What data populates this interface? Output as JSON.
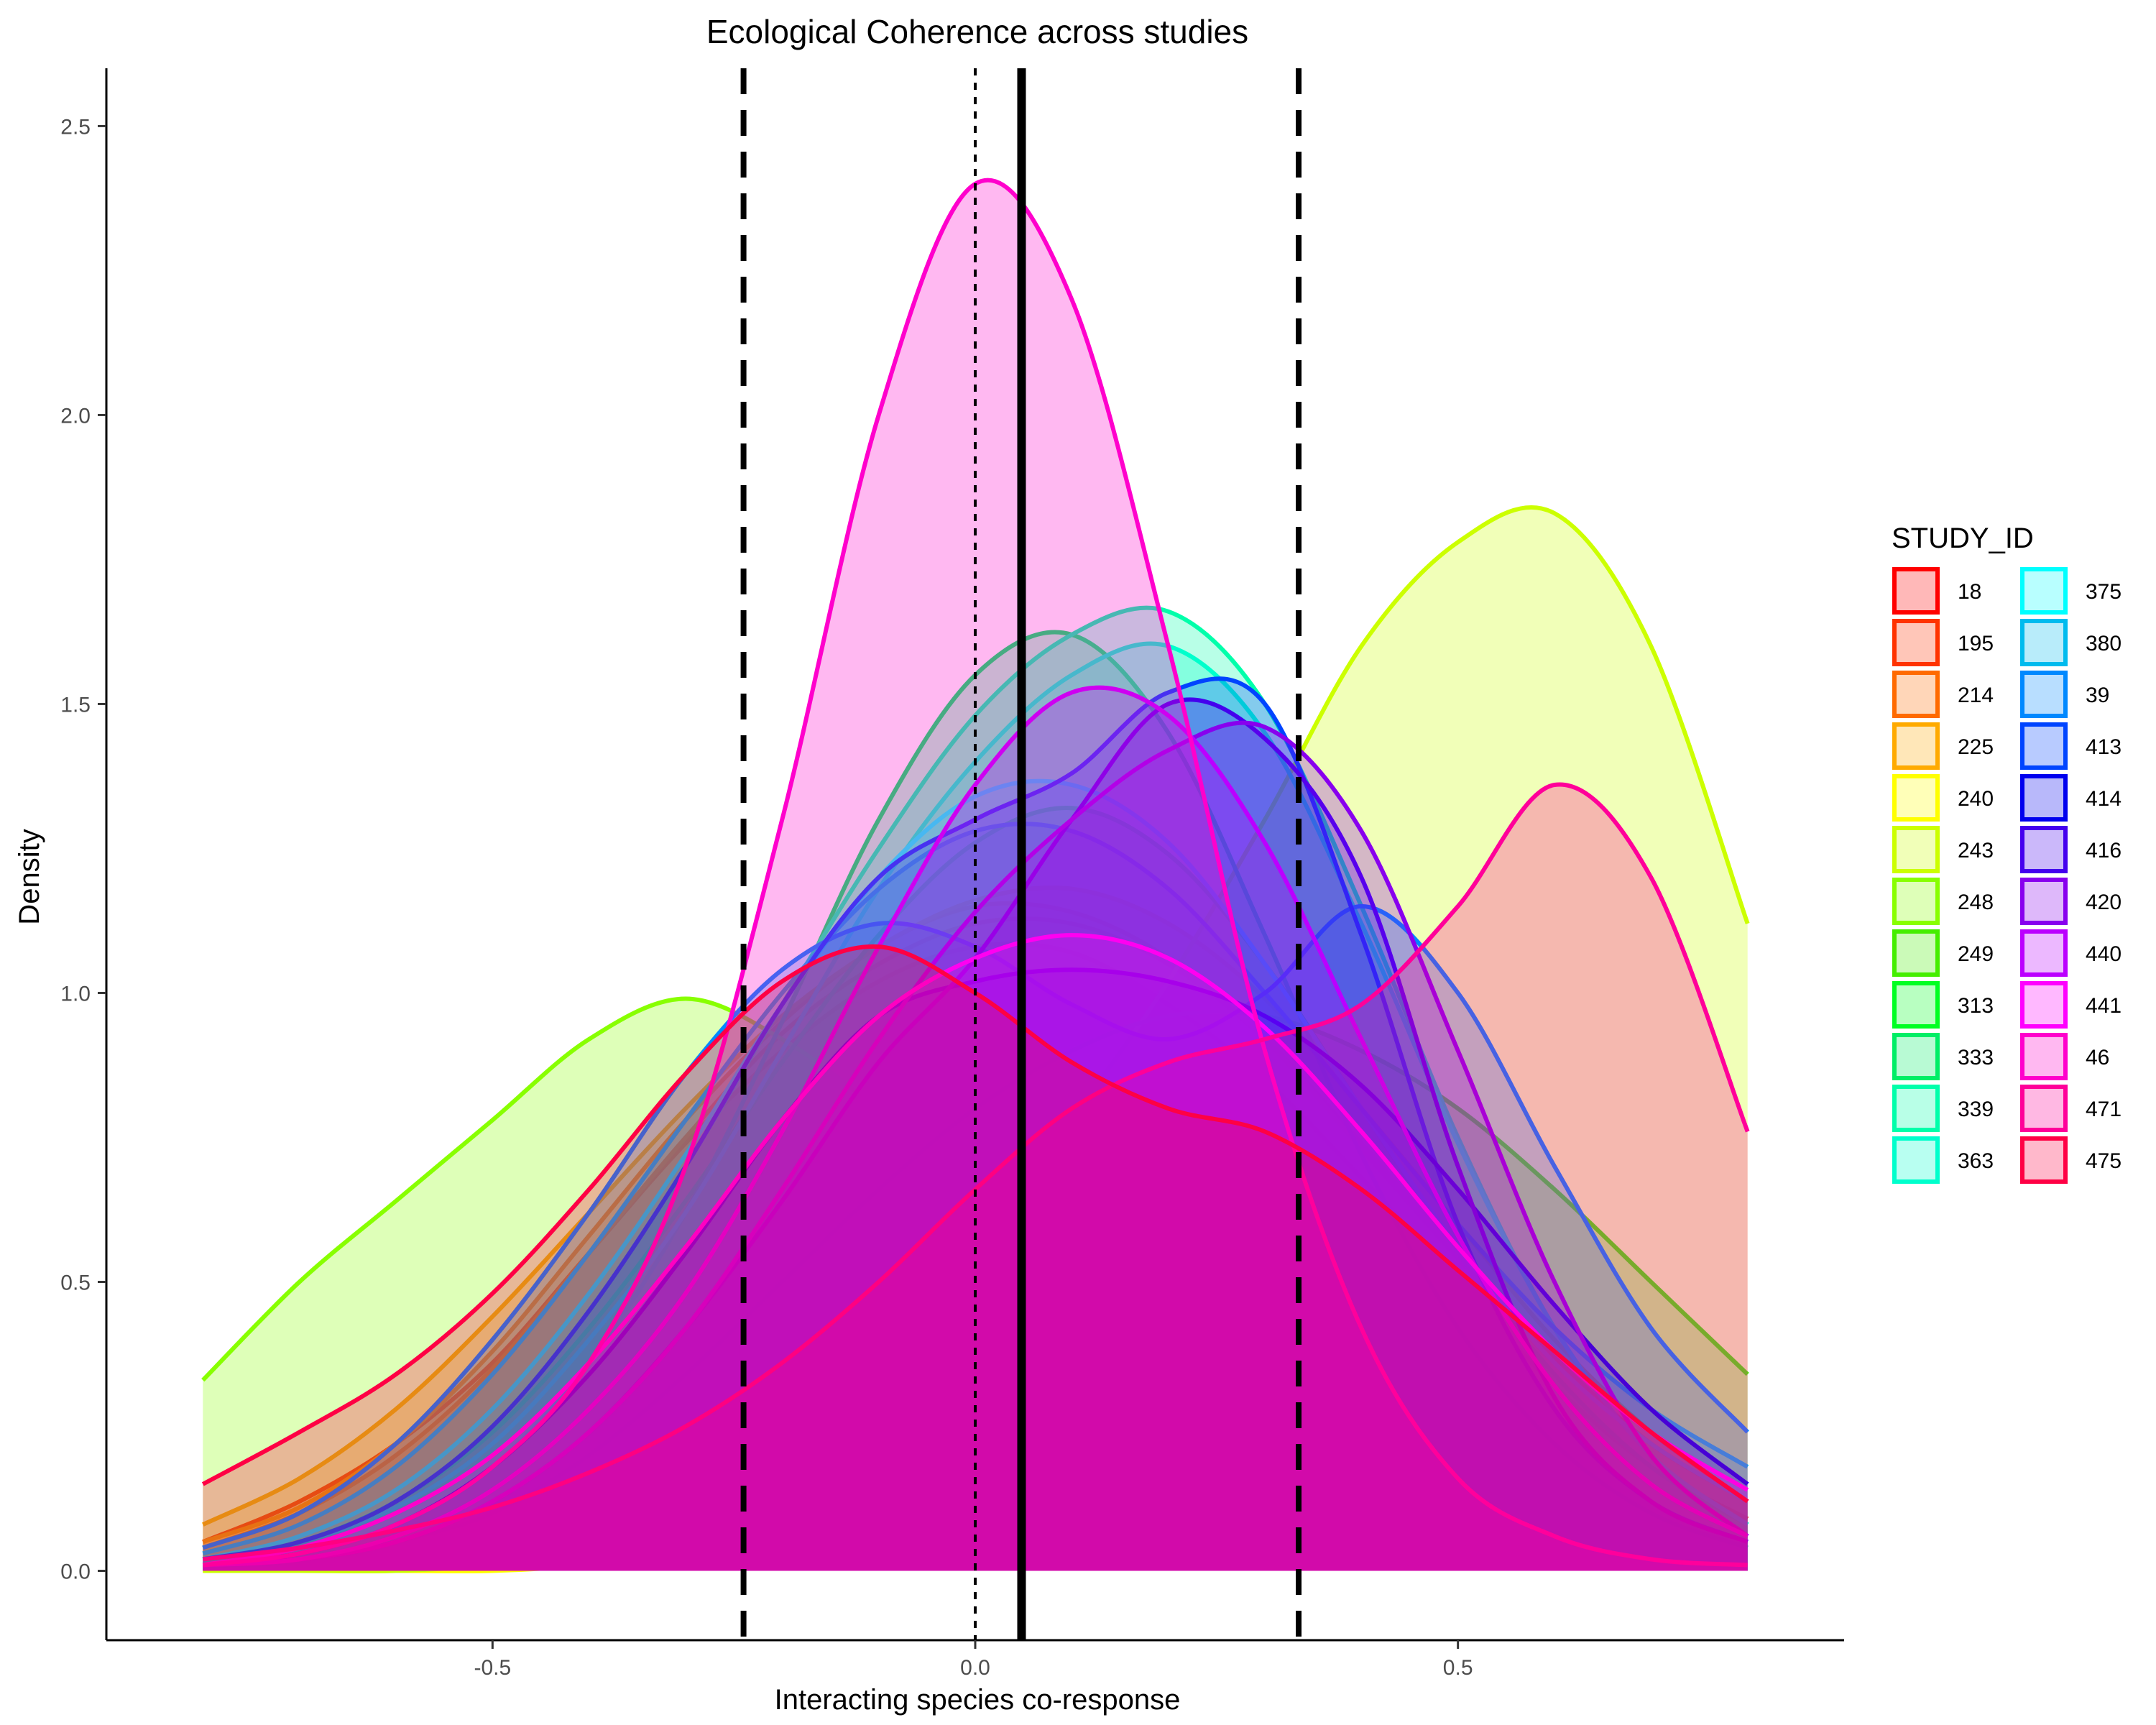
{
  "chart_data": {
    "type": "area",
    "title": "Ecological Coherence across studies",
    "xlabel": "Interacting species co-response",
    "ylabel": "Density",
    "xlim": [
      -0.9,
      0.9
    ],
    "ylim": [
      -0.12,
      2.6
    ],
    "xticks": [
      -0.5,
      0.0,
      0.5
    ],
    "xtick_labels": [
      "-0.5",
      "0.0",
      "0.5"
    ],
    "yticks": [
      0.0,
      0.5,
      1.0,
      1.5,
      2.0,
      2.5
    ],
    "ytick_labels": [
      "0.0",
      "0.5",
      "1.0",
      "1.5",
      "2.0",
      "2.5"
    ],
    "grid": false,
    "legend": {
      "title": "STUDY_ID",
      "placement": "right",
      "columns": 2
    },
    "reference_lines": [
      {
        "x": 0.0,
        "style": "dotted"
      },
      {
        "x": 0.048,
        "style": "solid-thick"
      },
      {
        "x": -0.24,
        "style": "dashed"
      },
      {
        "x": 0.335,
        "style": "dashed"
      }
    ],
    "x": [
      -0.8,
      -0.7,
      -0.6,
      -0.5,
      -0.4,
      -0.3,
      -0.2,
      -0.1,
      0.0,
      0.1,
      0.2,
      0.3,
      0.4,
      0.5,
      0.6,
      0.7,
      0.8
    ],
    "series": [
      {
        "name": "18",
        "color": "#ff0000",
        "values": [
          0.05,
          0.12,
          0.22,
          0.36,
          0.55,
          0.74,
          0.9,
          1.02,
          1.08,
          1.07,
          0.98,
          0.85,
          0.68,
          0.5,
          0.32,
          0.18,
          0.09
        ]
      },
      {
        "name": "195",
        "color": "#ff3300",
        "values": [
          0.04,
          0.1,
          0.2,
          0.35,
          0.55,
          0.75,
          0.93,
          1.05,
          1.12,
          1.12,
          1.05,
          0.92,
          0.74,
          0.55,
          0.37,
          0.22,
          0.12
        ]
      },
      {
        "name": "214",
        "color": "#ff6a00",
        "values": [
          0.05,
          0.11,
          0.22,
          0.38,
          0.58,
          0.78,
          0.95,
          1.08,
          1.15,
          1.14,
          1.06,
          0.92,
          0.73,
          0.54,
          0.36,
          0.22,
          0.12
        ]
      },
      {
        "name": "225",
        "color": "#ffaa00",
        "values": [
          0.08,
          0.16,
          0.28,
          0.44,
          0.62,
          0.8,
          0.96,
          1.08,
          1.16,
          1.18,
          1.12,
          0.99,
          0.8,
          0.6,
          0.4,
          0.24,
          0.12
        ]
      },
      {
        "name": "240",
        "color": "#ffff00",
        "values": [
          0.0,
          0.0,
          0.0,
          0.0,
          0.01,
          0.03,
          0.08,
          0.2,
          0.4,
          0.6,
          0.72,
          0.74,
          0.66,
          0.52,
          0.34,
          0.18,
          0.08
        ]
      },
      {
        "name": "243",
        "color": "#ccff00",
        "values": [
          0.0,
          0.0,
          0.0,
          0.01,
          0.03,
          0.08,
          0.18,
          0.34,
          0.55,
          0.78,
          1.02,
          1.3,
          1.6,
          1.78,
          1.83,
          1.6,
          1.12
        ]
      },
      {
        "name": "248",
        "color": "#88ff00",
        "values": [
          0.33,
          0.5,
          0.64,
          0.78,
          0.92,
          0.99,
          0.92,
          0.8,
          0.68,
          0.56,
          0.45,
          0.35,
          0.27,
          0.2,
          0.14,
          0.1,
          0.06
        ]
      },
      {
        "name": "249",
        "color": "#44ee00",
        "values": [
          0.01,
          0.02,
          0.05,
          0.1,
          0.2,
          0.34,
          0.5,
          0.66,
          0.8,
          0.9,
          0.96,
          0.96,
          0.9,
          0.8,
          0.66,
          0.5,
          0.34
        ]
      },
      {
        "name": "313",
        "color": "#00ff22",
        "values": [
          0.02,
          0.05,
          0.12,
          0.24,
          0.42,
          0.64,
          0.88,
          1.1,
          1.26,
          1.32,
          1.24,
          1.05,
          0.8,
          0.55,
          0.34,
          0.18,
          0.08
        ]
      },
      {
        "name": "333",
        "color": "#00ee66",
        "values": [
          0.01,
          0.03,
          0.08,
          0.18,
          0.36,
          0.62,
          0.95,
          1.3,
          1.55,
          1.62,
          1.45,
          1.1,
          0.72,
          0.42,
          0.22,
          0.1,
          0.04
        ]
      },
      {
        "name": "339",
        "color": "#00ffaa",
        "values": [
          0.02,
          0.05,
          0.12,
          0.25,
          0.45,
          0.7,
          0.98,
          1.25,
          1.48,
          1.62,
          1.66,
          1.5,
          1.15,
          0.75,
          0.42,
          0.2,
          0.08
        ]
      },
      {
        "name": "363",
        "color": "#00ffcc",
        "values": [
          0.02,
          0.05,
          0.11,
          0.22,
          0.4,
          0.62,
          0.9,
          1.18,
          1.4,
          1.55,
          1.6,
          1.45,
          1.12,
          0.74,
          0.42,
          0.2,
          0.08
        ]
      },
      {
        "name": "375",
        "color": "#00ffff",
        "values": [
          0.02,
          0.06,
          0.14,
          0.28,
          0.48,
          0.72,
          0.98,
          1.2,
          1.34,
          1.36,
          1.26,
          1.05,
          0.8,
          0.56,
          0.36,
          0.22,
          0.12
        ]
      },
      {
        "name": "380",
        "color": "#00bbee",
        "values": [
          0.03,
          0.08,
          0.18,
          0.34,
          0.55,
          0.78,
          1.0,
          1.18,
          1.28,
          1.28,
          1.18,
          1.0,
          0.8,
          0.6,
          0.42,
          0.28,
          0.18
        ]
      },
      {
        "name": "39",
        "color": "#0088ff",
        "values": [
          0.04,
          0.1,
          0.22,
          0.4,
          0.62,
          0.86,
          1.04,
          1.12,
          1.08,
          0.98,
          0.92,
          1.0,
          1.15,
          1.0,
          0.7,
          0.42,
          0.24
        ]
      },
      {
        "name": "413",
        "color": "#0044ff",
        "values": [
          0.02,
          0.05,
          0.12,
          0.25,
          0.45,
          0.7,
          0.98,
          1.2,
          1.3,
          1.38,
          1.52,
          1.5,
          1.1,
          0.6,
          0.28,
          0.12,
          0.05
        ]
      },
      {
        "name": "414",
        "color": "#0000ee",
        "values": [
          0.01,
          0.03,
          0.08,
          0.18,
          0.34,
          0.55,
          0.78,
          0.96,
          1.02,
          1.04,
          1.02,
          0.96,
          0.84,
          0.66,
          0.46,
          0.28,
          0.15
        ]
      },
      {
        "name": "416",
        "color": "#4400ee",
        "values": [
          0.01,
          0.02,
          0.05,
          0.12,
          0.24,
          0.42,
          0.64,
          0.88,
          1.06,
          1.3,
          1.5,
          1.44,
          1.2,
          0.7,
          0.3,
          0.12,
          0.05
        ]
      },
      {
        "name": "420",
        "color": "#8800ee",
        "values": [
          0.01,
          0.02,
          0.05,
          0.12,
          0.24,
          0.42,
          0.66,
          0.92,
          1.14,
          1.3,
          1.42,
          1.46,
          1.28,
          0.9,
          0.5,
          0.2,
          0.06
        ]
      },
      {
        "name": "440",
        "color": "#bb00ff",
        "values": [
          0.01,
          0.02,
          0.06,
          0.14,
          0.28,
          0.48,
          0.76,
          1.08,
          1.36,
          1.52,
          1.48,
          1.26,
          0.92,
          0.58,
          0.32,
          0.15,
          0.06
        ]
      },
      {
        "name": "441",
        "color": "#ff00ff",
        "values": [
          0.01,
          0.04,
          0.1,
          0.2,
          0.36,
          0.56,
          0.78,
          0.96,
          1.06,
          1.1,
          1.06,
          0.94,
          0.76,
          0.56,
          0.38,
          0.24,
          0.14
        ]
      },
      {
        "name": "46",
        "color": "#ff00cc",
        "values": [
          0.01,
          0.03,
          0.08,
          0.18,
          0.36,
          0.7,
          1.3,
          2.0,
          2.4,
          2.2,
          1.6,
          0.9,
          0.42,
          0.16,
          0.06,
          0.02,
          0.01
        ]
      },
      {
        "name": "471",
        "color": "#ff0099",
        "values": [
          0.02,
          0.04,
          0.07,
          0.11,
          0.17,
          0.25,
          0.36,
          0.5,
          0.66,
          0.8,
          0.88,
          0.92,
          0.98,
          1.15,
          1.36,
          1.2,
          0.76
        ]
      },
      {
        "name": "475",
        "color": "#ff0044",
        "values": [
          0.15,
          0.24,
          0.34,
          0.48,
          0.66,
          0.86,
          1.02,
          1.08,
          1.0,
          0.88,
          0.8,
          0.76,
          0.66,
          0.52,
          0.38,
          0.24,
          0.12
        ]
      }
    ]
  }
}
